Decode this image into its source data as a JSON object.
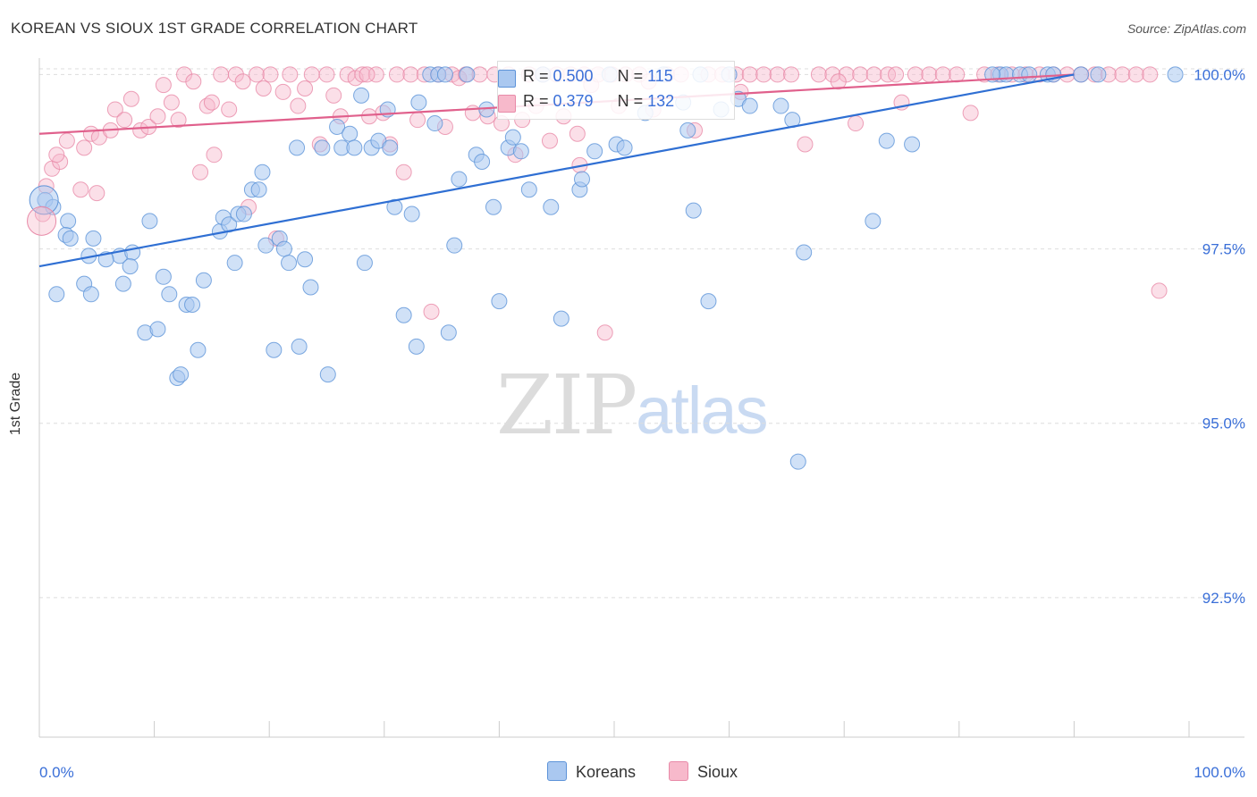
{
  "title": "KOREAN VS SIOUX 1ST GRADE CORRELATION CHART",
  "source": "Source: ZipAtlas.com",
  "watermark": {
    "part1": "ZIP",
    "part2": "atlas"
  },
  "legend_top": [
    {
      "r_label": "R = ",
      "r_value": "0.500",
      "n_label": "N = ",
      "n_value": "115"
    },
    {
      "r_label": "R = ",
      "r_value": "0.379",
      "n_label": "N = ",
      "n_value": "132"
    }
  ],
  "legend_bottom": [
    "Koreans",
    "Sioux"
  ],
  "colors": {
    "korean_fill": "#aac8f0",
    "korean_stroke": "#5d93d8",
    "korean_line": "#2f6fd3",
    "sioux_fill": "#f7b9cb",
    "sioux_stroke": "#e88aa8",
    "sioux_line": "#e0608c",
    "tick_text": "#3a6fd8",
    "grid": "#dddddd"
  },
  "chart_data": {
    "type": "scatter",
    "title": "KOREAN VS SIOUX 1ST GRADE CORRELATION CHART",
    "xlabel": "",
    "ylabel": "1st Grade",
    "xlim": [
      0,
      100
    ],
    "ylim": [
      90.5,
      100.3
    ],
    "x_tick_labels": [
      "0.0%",
      "100.0%"
    ],
    "y_ticks": [
      92.5,
      95.0,
      97.5,
      100.0
    ],
    "y_tick_labels": [
      "92.5%",
      "95.0%",
      "97.5%",
      "100.0%"
    ],
    "grid": "dashed horizontal",
    "series": [
      {
        "name": "Koreans",
        "trend": {
          "x": [
            0,
            90
          ],
          "y": [
            97.25,
            100.0
          ]
        },
        "points": [
          [
            0.5,
            98.2
          ],
          [
            1.2,
            98.1
          ],
          [
            2.5,
            97.9
          ],
          [
            2.3,
            97.7
          ],
          [
            2.7,
            97.65
          ],
          [
            4.7,
            97.65
          ],
          [
            4.3,
            97.4
          ],
          [
            7.0,
            97.4
          ],
          [
            5.8,
            97.35
          ],
          [
            8.1,
            97.45
          ],
          [
            7.9,
            97.25
          ],
          [
            9.6,
            97.9
          ],
          [
            3.9,
            97.0
          ],
          [
            7.3,
            97.0
          ],
          [
            10.8,
            97.1
          ],
          [
            11.3,
            96.85
          ],
          [
            4.5,
            96.85
          ],
          [
            1.5,
            96.85
          ],
          [
            12.8,
            96.7
          ],
          [
            13.3,
            96.7
          ],
          [
            9.2,
            96.3
          ],
          [
            10.3,
            96.35
          ],
          [
            14.3,
            97.05
          ],
          [
            12.0,
            95.65
          ],
          [
            12.3,
            95.7
          ],
          [
            13.8,
            96.05
          ],
          [
            15.7,
            97.75
          ],
          [
            16.0,
            97.95
          ],
          [
            16.5,
            97.85
          ],
          [
            17.0,
            97.3
          ],
          [
            17.3,
            98.0
          ],
          [
            17.8,
            98.0
          ],
          [
            18.5,
            98.35
          ],
          [
            19.1,
            98.35
          ],
          [
            19.4,
            98.6
          ],
          [
            19.7,
            97.55
          ],
          [
            20.4,
            96.05
          ],
          [
            20.9,
            97.65
          ],
          [
            21.3,
            97.5
          ],
          [
            21.7,
            97.3
          ],
          [
            22.6,
            96.1
          ],
          [
            23.1,
            97.35
          ],
          [
            23.6,
            96.95
          ],
          [
            25.1,
            95.7
          ],
          [
            22.4,
            98.95
          ],
          [
            24.6,
            98.95
          ],
          [
            25.9,
            99.25
          ],
          [
            26.3,
            98.95
          ],
          [
            27.0,
            99.15
          ],
          [
            27.4,
            98.95
          ],
          [
            28.0,
            99.7
          ],
          [
            28.3,
            97.3
          ],
          [
            28.9,
            98.95
          ],
          [
            29.5,
            99.05
          ],
          [
            30.3,
            99.5
          ],
          [
            30.5,
            98.95
          ],
          [
            30.9,
            98.1
          ],
          [
            31.7,
            96.55
          ],
          [
            32.4,
            98.0
          ],
          [
            32.8,
            96.1
          ],
          [
            33.0,
            99.6
          ],
          [
            34.0,
            100.0
          ],
          [
            34.4,
            99.3
          ],
          [
            34.7,
            100.0
          ],
          [
            35.3,
            100.0
          ],
          [
            35.6,
            96.3
          ],
          [
            36.1,
            97.55
          ],
          [
            36.5,
            98.5
          ],
          [
            37.2,
            100.0
          ],
          [
            38.0,
            98.85
          ],
          [
            38.5,
            98.75
          ],
          [
            38.9,
            99.5
          ],
          [
            39.5,
            98.1
          ],
          [
            40.0,
            96.75
          ],
          [
            40.8,
            98.95
          ],
          [
            41.2,
            99.1
          ],
          [
            41.9,
            98.9
          ],
          [
            42.6,
            98.35
          ],
          [
            43.8,
            100.0
          ],
          [
            44.5,
            98.1
          ],
          [
            45.4,
            96.5
          ],
          [
            47.0,
            98.35
          ],
          [
            47.2,
            98.5
          ],
          [
            48.3,
            98.9
          ],
          [
            49.6,
            100.0
          ],
          [
            50.2,
            99.0
          ],
          [
            50.9,
            98.95
          ],
          [
            52.7,
            99.45
          ],
          [
            54.3,
            100.0
          ],
          [
            56.0,
            99.6
          ],
          [
            56.4,
            99.2
          ],
          [
            57.5,
            100.0
          ],
          [
            60.0,
            100.0
          ],
          [
            56.9,
            98.05
          ],
          [
            58.2,
            96.75
          ],
          [
            59.3,
            99.5
          ],
          [
            66.0,
            94.45
          ],
          [
            66.5,
            97.45
          ],
          [
            65.5,
            99.35
          ],
          [
            60.8,
            99.65
          ],
          [
            73.7,
            99.05
          ],
          [
            75.9,
            99.0
          ],
          [
            83.6,
            100.0
          ],
          [
            84.1,
            100.0
          ],
          [
            85.3,
            100.0
          ],
          [
            86.1,
            100.0
          ],
          [
            87.7,
            100.0
          ],
          [
            88.2,
            100.0
          ],
          [
            92.1,
            100.0
          ],
          [
            98.8,
            100.0
          ],
          [
            90.6,
            100.0
          ],
          [
            61.8,
            99.55
          ],
          [
            72.5,
            97.9
          ],
          [
            82.9,
            100.0
          ],
          [
            64.5,
            99.55
          ]
        ]
      },
      {
        "name": "Sioux",
        "trend": {
          "x": [
            0,
            90
          ],
          "y": [
            99.15,
            100.0
          ]
        },
        "points": [
          [
            0.3,
            98.0
          ],
          [
            0.6,
            98.4
          ],
          [
            1.1,
            98.65
          ],
          [
            1.8,
            98.75
          ],
          [
            2.4,
            99.05
          ],
          [
            1.5,
            98.85
          ],
          [
            3.6,
            98.35
          ],
          [
            3.9,
            98.95
          ],
          [
            4.5,
            99.15
          ],
          [
            5.2,
            99.1
          ],
          [
            6.2,
            99.2
          ],
          [
            6.6,
            99.5
          ],
          [
            7.4,
            99.35
          ],
          [
            8.0,
            99.65
          ],
          [
            8.8,
            99.2
          ],
          [
            9.5,
            99.25
          ],
          [
            10.3,
            99.4
          ],
          [
            10.8,
            99.85
          ],
          [
            11.5,
            99.6
          ],
          [
            12.1,
            99.35
          ],
          [
            12.6,
            100.0
          ],
          [
            13.4,
            99.9
          ],
          [
            14.0,
            98.6
          ],
          [
            14.6,
            99.55
          ],
          [
            15.2,
            98.85
          ],
          [
            15.8,
            100.0
          ],
          [
            16.5,
            99.5
          ],
          [
            17.1,
            100.0
          ],
          [
            17.7,
            99.9
          ],
          [
            18.2,
            98.1
          ],
          [
            18.9,
            100.0
          ],
          [
            19.5,
            99.8
          ],
          [
            20.1,
            100.0
          ],
          [
            20.6,
            97.65
          ],
          [
            21.2,
            99.75
          ],
          [
            21.8,
            100.0
          ],
          [
            22.5,
            99.55
          ],
          [
            23.1,
            99.8
          ],
          [
            23.7,
            100.0
          ],
          [
            24.4,
            99.0
          ],
          [
            25.0,
            100.0
          ],
          [
            25.6,
            99.7
          ],
          [
            26.2,
            99.4
          ],
          [
            26.8,
            100.0
          ],
          [
            27.5,
            99.95
          ],
          [
            28.1,
            100.0
          ],
          [
            28.7,
            99.4
          ],
          [
            29.3,
            100.0
          ],
          [
            29.9,
            99.45
          ],
          [
            30.5,
            99.0
          ],
          [
            31.1,
            100.0
          ],
          [
            31.7,
            98.6
          ],
          [
            32.3,
            100.0
          ],
          [
            32.9,
            99.35
          ],
          [
            33.5,
            100.0
          ],
          [
            34.1,
            96.6
          ],
          [
            34.7,
            100.0
          ],
          [
            35.3,
            99.25
          ],
          [
            35.9,
            100.0
          ],
          [
            36.5,
            99.95
          ],
          [
            37.1,
            100.0
          ],
          [
            37.7,
            99.45
          ],
          [
            38.3,
            100.0
          ],
          [
            39.0,
            99.4
          ],
          [
            39.6,
            100.0
          ],
          [
            40.2,
            99.3
          ],
          [
            40.8,
            100.0
          ],
          [
            41.4,
            98.85
          ],
          [
            42.0,
            99.35
          ],
          [
            42.6,
            100.0
          ],
          [
            43.2,
            99.55
          ],
          [
            43.8,
            100.0
          ],
          [
            44.4,
            99.05
          ],
          [
            45.0,
            100.0
          ],
          [
            45.6,
            99.4
          ],
          [
            46.2,
            100.0
          ],
          [
            46.8,
            99.15
          ],
          [
            47.4,
            100.0
          ],
          [
            48.0,
            99.85
          ],
          [
            48.6,
            100.0
          ],
          [
            49.2,
            96.3
          ],
          [
            49.8,
            100.0
          ],
          [
            50.4,
            99.55
          ],
          [
            51.0,
            100.0
          ],
          [
            52.2,
            100.0
          ],
          [
            53.4,
            99.5
          ],
          [
            54.6,
            100.0
          ],
          [
            55.8,
            100.0
          ],
          [
            57.0,
            99.2
          ],
          [
            58.2,
            100.0
          ],
          [
            59.4,
            100.0
          ],
          [
            60.6,
            100.0
          ],
          [
            61.8,
            100.0
          ],
          [
            63.0,
            100.0
          ],
          [
            64.2,
            100.0
          ],
          [
            65.4,
            100.0
          ],
          [
            66.6,
            99.0
          ],
          [
            67.8,
            100.0
          ],
          [
            69.0,
            100.0
          ],
          [
            70.2,
            100.0
          ],
          [
            71.4,
            100.0
          ],
          [
            72.6,
            100.0
          ],
          [
            73.8,
            100.0
          ],
          [
            75.0,
            99.6
          ],
          [
            76.2,
            100.0
          ],
          [
            77.4,
            100.0
          ],
          [
            78.6,
            100.0
          ],
          [
            79.8,
            100.0
          ],
          [
            81.0,
            99.45
          ],
          [
            82.2,
            100.0
          ],
          [
            83.4,
            100.0
          ],
          [
            84.6,
            100.0
          ],
          [
            85.8,
            100.0
          ],
          [
            87.0,
            100.0
          ],
          [
            88.2,
            100.0
          ],
          [
            89.4,
            100.0
          ],
          [
            90.6,
            100.0
          ],
          [
            91.8,
            100.0
          ],
          [
            93.0,
            100.0
          ],
          [
            94.2,
            100.0
          ],
          [
            95.4,
            100.0
          ],
          [
            96.6,
            100.0
          ],
          [
            97.4,
            96.9
          ],
          [
            71.0,
            99.3
          ],
          [
            74.5,
            100.0
          ],
          [
            69.5,
            99.9
          ],
          [
            61.0,
            99.75
          ],
          [
            53.0,
            99.9
          ],
          [
            47.0,
            98.7
          ],
          [
            28.5,
            100.0
          ],
          [
            15.0,
            99.6
          ],
          [
            5.0,
            98.3
          ]
        ]
      }
    ]
  }
}
